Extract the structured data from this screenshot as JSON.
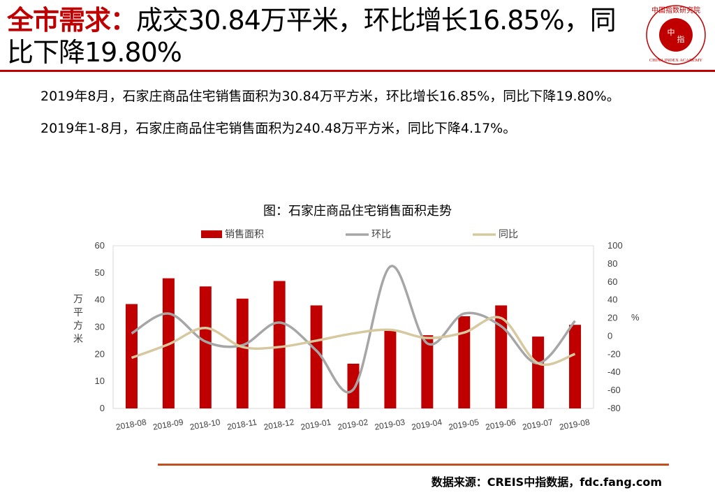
{
  "headline": {
    "key": "全市需求：",
    "rest": "成交30.84万平米，环比增长16.85%，同比下降19.80%"
  },
  "logo": {
    "upper_text": "中国指数研究院",
    "center_char_1": "中",
    "center_char_2": "指",
    "lower_text": "CHINA INDEX ACADEMY"
  },
  "paragraphs": [
    "2019年8月，石家庄商品住宅销售面积为30.84万平方米，环比增长16.85%，同比下降19.80%。",
    "2019年1-8月，石家庄商品住宅销售面积为240.48万平方米，同比下降4.17%。"
  ],
  "chart_title": "图：石家庄商品住宅销售面积走势",
  "source": "数据来源：CREIS中指数据，fdc.fang.com",
  "colors": {
    "accent": "#c00000",
    "bar": "#c00000",
    "mom": "#a6a6a6",
    "yoy": "#d6c9a0",
    "rule": "#c0501e"
  },
  "chart_data": {
    "type": "bar",
    "title": "图：石家庄商品住宅销售面积走势",
    "categories": [
      "2018-08",
      "2018-09",
      "2018-10",
      "2018-11",
      "2018-12",
      "2019-01",
      "2019-02",
      "2019-03",
      "2019-04",
      "2019-05",
      "2019-06",
      "2019-07",
      "2019-08"
    ],
    "y_label": "万平方米",
    "y_ticks": [
      0,
      10,
      20,
      30,
      40,
      50,
      60
    ],
    "ylim": [
      0,
      60
    ],
    "y2_label": "%",
    "y2_ticks": [
      -80,
      -60,
      -40,
      -20,
      0,
      20,
      40,
      60,
      80,
      100
    ],
    "y2lim": [
      -80,
      100
    ],
    "legend_position": "top",
    "grid": false,
    "series": [
      {
        "name": "销售面积",
        "type": "bar",
        "axis": "left",
        "values": [
          38.5,
          48,
          45,
          40.5,
          47,
          38,
          16.5,
          29,
          27,
          34,
          38,
          26.5,
          30.84
        ]
      },
      {
        "name": "环比",
        "type": "line",
        "axis": "right",
        "values": [
          3,
          25,
          -6,
          -10,
          15,
          -16,
          -59,
          77,
          -8,
          25,
          11,
          -30,
          16.85
        ]
      },
      {
        "name": "同比",
        "type": "line",
        "axis": "right",
        "values": [
          -24,
          -9,
          9,
          -12,
          -12,
          -5,
          3,
          7,
          -2,
          4,
          20,
          -30,
          -19.8
        ]
      }
    ]
  }
}
